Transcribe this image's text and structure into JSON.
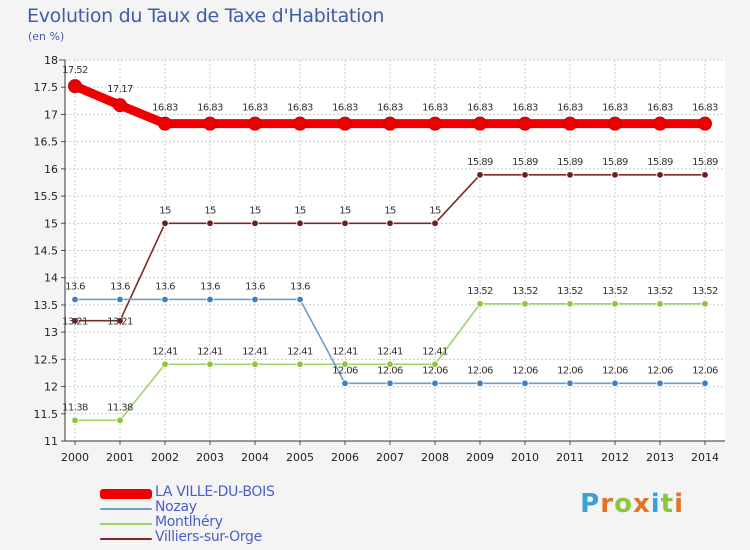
{
  "header": {
    "title": "Evolution du Taux de Taxe d'Habitation",
    "subtitle": "(en %)"
  },
  "brand": {
    "name": "Proxiti",
    "letters": [
      "P",
      "r",
      "o",
      "x",
      "i",
      "t",
      "i"
    ],
    "colors": [
      "#3aa0d8",
      "#e0742a",
      "#8cc63f",
      "#e0742a",
      "#3aa0d8",
      "#8cc63f",
      "#e0742a"
    ]
  },
  "chart_data": {
    "type": "line",
    "title": "Evolution du Taux de Taxe d'Habitation",
    "ylabel": "(en %)",
    "xlabel": "",
    "x": [
      "2000",
      "2001",
      "2002",
      "2003",
      "2004",
      "2005",
      "2006",
      "2007",
      "2008",
      "2009",
      "2010",
      "2011",
      "2012",
      "2013",
      "2014"
    ],
    "ylim": [
      11,
      18
    ],
    "yticks": [
      "11",
      "11.5",
      "12",
      "12.5",
      "13",
      "13.5",
      "14",
      "14.5",
      "15",
      "15.5",
      "16",
      "16.5",
      "17",
      "17.5",
      "18"
    ],
    "grid": true,
    "legend_position": "bottom-left",
    "series": [
      {
        "name": "LA VILLE-DU-BOIS",
        "color": "#ee0000",
        "marker_color": "#ee0000",
        "values": [
          17.52,
          17.17,
          16.83,
          16.83,
          16.83,
          16.83,
          16.83,
          16.83,
          16.83,
          16.83,
          16.83,
          16.83,
          16.83,
          16.83,
          16.83
        ],
        "labels": [
          "17.52",
          "17.17",
          "16.83",
          "16.83",
          "16.83",
          "16.83",
          "16.83",
          "16.83",
          "16.83",
          "16.83",
          "16.83",
          "16.83",
          "16.83",
          "16.83",
          "16.83"
        ]
      },
      {
        "name": "Nozay",
        "color": "#6b9dcc",
        "marker_color": "#3f7fc4",
        "values": [
          13.6,
          13.6,
          13.6,
          13.6,
          13.6,
          13.6,
          12.06,
          12.06,
          12.06,
          12.06,
          12.06,
          12.06,
          12.06,
          12.06,
          12.06
        ],
        "labels": [
          "13.6",
          "13.6",
          "13.6",
          "13.6",
          "13.6",
          "13.6",
          "12.06",
          "12.06",
          "12.06",
          "12.06",
          "12.06",
          "12.06",
          "12.06",
          "12.06",
          "12.06"
        ]
      },
      {
        "name": "Montlhéry",
        "color": "#9dd46a",
        "marker_color": "#8cc63f",
        "values": [
          11.38,
          11.38,
          12.41,
          12.41,
          12.41,
          12.41,
          12.41,
          12.41,
          12.41,
          13.52,
          13.52,
          13.52,
          13.52,
          13.52,
          13.52
        ],
        "labels": [
          "11.38",
          "11.38",
          "12.41",
          "12.41",
          "12.41",
          "12.41",
          "12.41",
          "12.41",
          "12.41",
          "13.52",
          "13.52",
          "13.52",
          "13.52",
          "13.52",
          "13.52"
        ]
      },
      {
        "name": "Villiers-sur-Orge",
        "color": "#7a2a2a",
        "marker_color": "#6b1f1f",
        "values": [
          13.21,
          13.21,
          15,
          15,
          15,
          15,
          15,
          15,
          15,
          15.89,
          15.89,
          15.89,
          15.89,
          15.89,
          15.89
        ],
        "labels": [
          "13.21",
          "13.21",
          "15",
          "15",
          "15",
          "15",
          "15",
          "15",
          "15",
          "15.89",
          "15.89",
          "15.89",
          "15.89",
          "15.89",
          "15.89"
        ]
      }
    ]
  }
}
